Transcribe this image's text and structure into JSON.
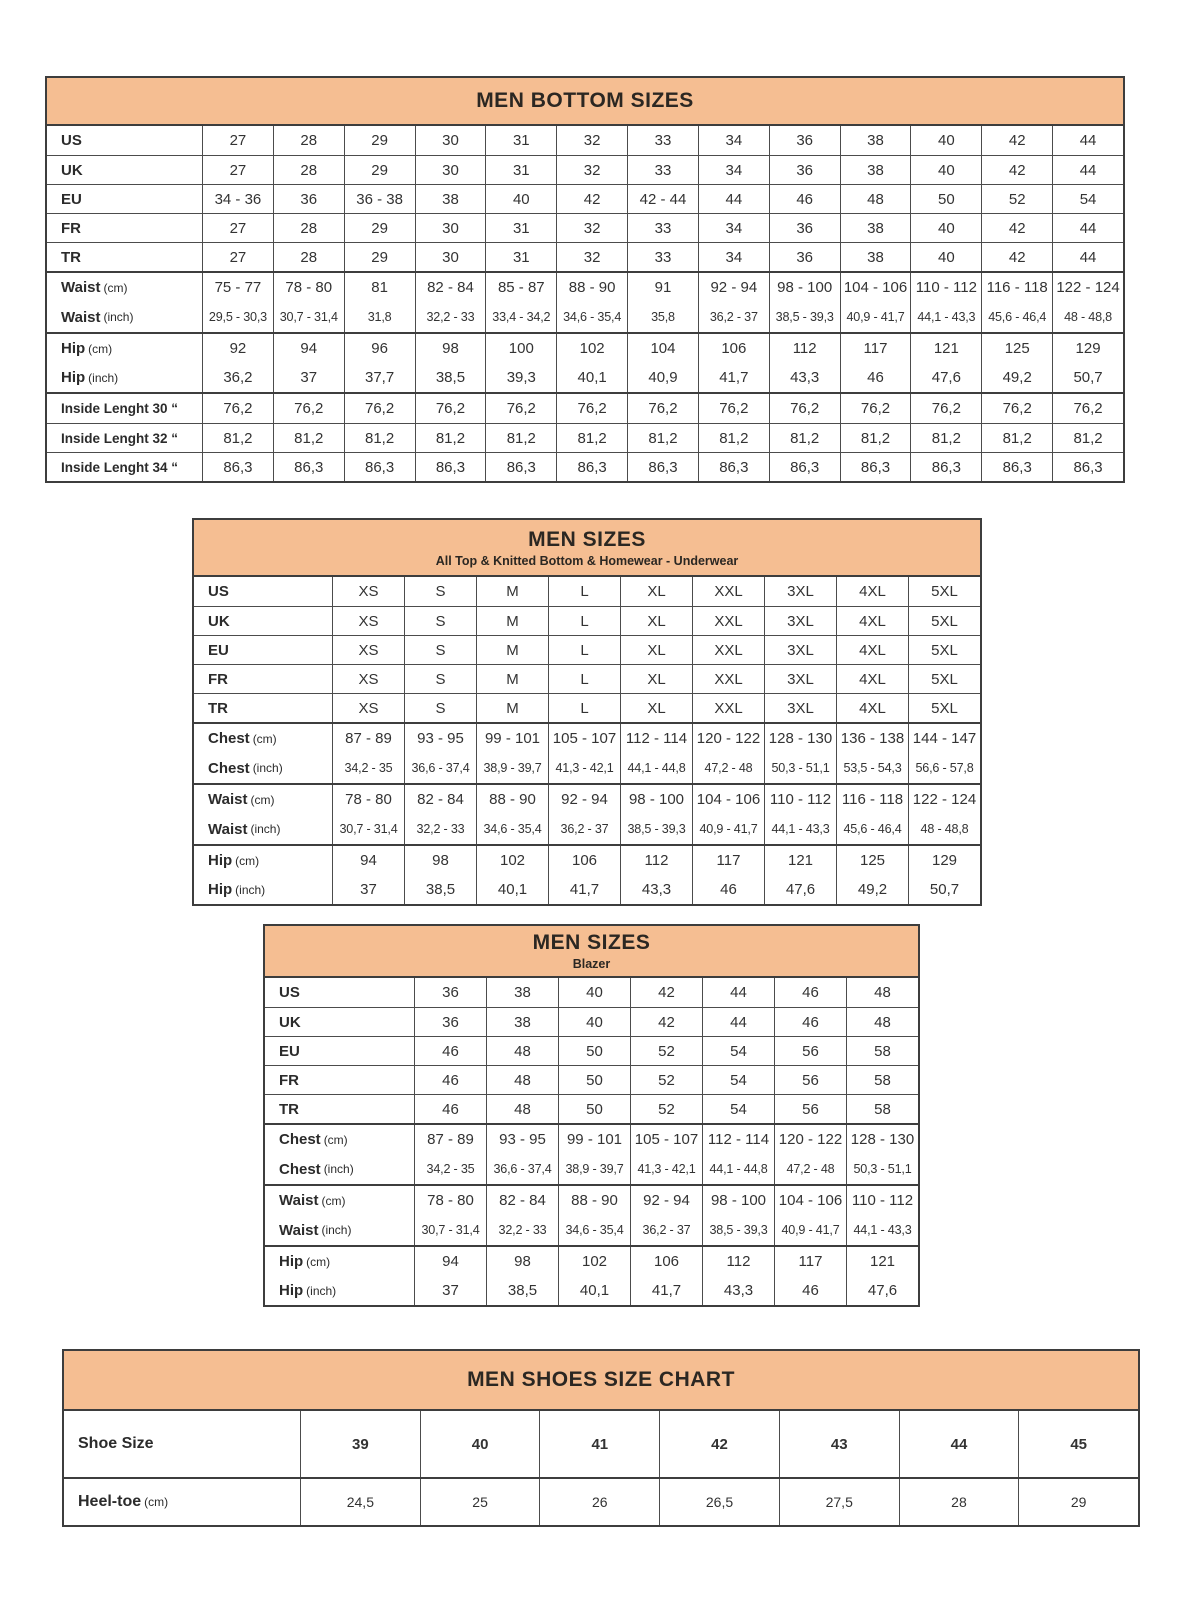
{
  "colors": {
    "header_background": "#F5BE92",
    "header_text": "#2b2722",
    "border": "#3d3d3d",
    "cell_text": "#333333"
  },
  "tables": [
    {
      "id": "men-bottom-sizes",
      "title": "MEN BOTTOM SIZES",
      "subtitle": "",
      "rows": [
        {
          "label": "US",
          "label_note": "",
          "sep": "none",
          "small": false,
          "values": [
            "27",
            "28",
            "29",
            "30",
            "31",
            "32",
            "33",
            "34",
            "36",
            "38",
            "40",
            "42",
            "44"
          ]
        },
        {
          "label": "UK",
          "label_note": "",
          "sep": "thin",
          "small": false,
          "values": [
            "27",
            "28",
            "29",
            "30",
            "31",
            "32",
            "33",
            "34",
            "36",
            "38",
            "40",
            "42",
            "44"
          ]
        },
        {
          "label": "EU",
          "label_note": "",
          "sep": "thin",
          "small": false,
          "values": [
            "34 - 36",
            "36",
            "36 - 38",
            "38",
            "40",
            "42",
            "42 - 44",
            "44",
            "46",
            "48",
            "50",
            "52",
            "54"
          ]
        },
        {
          "label": "FR",
          "label_note": "",
          "sep": "thin",
          "small": false,
          "values": [
            "27",
            "28",
            "29",
            "30",
            "31",
            "32",
            "33",
            "34",
            "36",
            "38",
            "40",
            "42",
            "44"
          ]
        },
        {
          "label": "TR",
          "label_note": "",
          "sep": "thin",
          "small": false,
          "values": [
            "27",
            "28",
            "29",
            "30",
            "31",
            "32",
            "33",
            "34",
            "36",
            "38",
            "40",
            "42",
            "44"
          ]
        },
        {
          "label": "Waist",
          "label_note": "(cm)",
          "sep": "thick",
          "small": false,
          "values": [
            "75 - 77",
            "78 - 80",
            "81",
            "82 - 84",
            "85 - 87",
            "88 - 90",
            "91",
            "92 - 94",
            "98 - 100",
            "104 - 106",
            "110 - 112",
            "116 - 118",
            "122 - 124"
          ]
        },
        {
          "label": "Waist",
          "label_note": "(inch)",
          "sep": "none",
          "small": true,
          "values": [
            "29,5 - 30,3",
            "30,7 - 31,4",
            "31,8",
            "32,2 - 33",
            "33,4 - 34,2",
            "34,6 - 35,4",
            "35,8",
            "36,2 - 37",
            "38,5 - 39,3",
            "40,9 - 41,7",
            "44,1 - 43,3",
            "45,6 - 46,4",
            "48 - 48,8"
          ]
        },
        {
          "label": "Hip",
          "label_note": "(cm)",
          "sep": "thick",
          "small": false,
          "values": [
            "92",
            "94",
            "96",
            "98",
            "100",
            "102",
            "104",
            "106",
            "112",
            "117",
            "121",
            "125",
            "129"
          ]
        },
        {
          "label": "Hip",
          "label_note": "(inch)",
          "sep": "none",
          "small": false,
          "values": [
            "36,2",
            "37",
            "37,7",
            "38,5",
            "39,3",
            "40,1",
            "40,9",
            "41,7",
            "43,3",
            "46",
            "47,6",
            "49,2",
            "50,7"
          ]
        },
        {
          "label": "Inside Lenght 30 “",
          "label_note": "",
          "sep": "thick",
          "small": false,
          "label_small": true,
          "values": [
            "76,2",
            "76,2",
            "76,2",
            "76,2",
            "76,2",
            "76,2",
            "76,2",
            "76,2",
            "76,2",
            "76,2",
            "76,2",
            "76,2",
            "76,2"
          ]
        },
        {
          "label": "Inside Lenght 32 “",
          "label_note": "",
          "sep": "thin",
          "small": false,
          "label_small": true,
          "values": [
            "81,2",
            "81,2",
            "81,2",
            "81,2",
            "81,2",
            "81,2",
            "81,2",
            "81,2",
            "81,2",
            "81,2",
            "81,2",
            "81,2",
            "81,2"
          ]
        },
        {
          "label": "Inside Lenght 34 “",
          "label_note": "",
          "sep": "thin",
          "small": false,
          "label_small": true,
          "values": [
            "86,3",
            "86,3",
            "86,3",
            "86,3",
            "86,3",
            "86,3",
            "86,3",
            "86,3",
            "86,3",
            "86,3",
            "86,3",
            "86,3",
            "86,3"
          ]
        }
      ]
    },
    {
      "id": "men-sizes-tops",
      "title": "MEN SIZES",
      "subtitle": "All Top & Knitted Bottom & Homewear - Underwear",
      "rows": [
        {
          "label": "US",
          "label_note": "",
          "sep": "none",
          "small": false,
          "values": [
            "XS",
            "S",
            "M",
            "L",
            "XL",
            "XXL",
            "3XL",
            "4XL",
            "5XL"
          ]
        },
        {
          "label": "UK",
          "label_note": "",
          "sep": "thin",
          "small": false,
          "values": [
            "XS",
            "S",
            "M",
            "L",
            "XL",
            "XXL",
            "3XL",
            "4XL",
            "5XL"
          ]
        },
        {
          "label": "EU",
          "label_note": "",
          "sep": "thin",
          "small": false,
          "values": [
            "XS",
            "S",
            "M",
            "L",
            "XL",
            "XXL",
            "3XL",
            "4XL",
            "5XL"
          ]
        },
        {
          "label": "FR",
          "label_note": "",
          "sep": "thin",
          "small": false,
          "values": [
            "XS",
            "S",
            "M",
            "L",
            "XL",
            "XXL",
            "3XL",
            "4XL",
            "5XL"
          ]
        },
        {
          "label": "TR",
          "label_note": "",
          "sep": "thin",
          "small": false,
          "values": [
            "XS",
            "S",
            "M",
            "L",
            "XL",
            "XXL",
            "3XL",
            "4XL",
            "5XL"
          ]
        },
        {
          "label": "Chest",
          "label_note": "(cm)",
          "sep": "thick",
          "small": false,
          "values": [
            "87 - 89",
            "93 - 95",
            "99 - 101",
            "105 - 107",
            "112 - 114",
            "120 - 122",
            "128 - 130",
            "136 - 138",
            "144 - 147"
          ]
        },
        {
          "label": "Chest",
          "label_note": "(inch)",
          "sep": "none",
          "small": true,
          "values": [
            "34,2 - 35",
            "36,6 - 37,4",
            "38,9 - 39,7",
            "41,3 - 42,1",
            "44,1 - 44,8",
            "47,2 - 48",
            "50,3 - 51,1",
            "53,5 - 54,3",
            "56,6 - 57,8"
          ]
        },
        {
          "label": "Waist",
          "label_note": "(cm)",
          "sep": "thick",
          "small": false,
          "values": [
            "78 - 80",
            "82 - 84",
            "88 - 90",
            "92 - 94",
            "98 - 100",
            "104 - 106",
            "110 - 112",
            "116 - 118",
            "122 - 124"
          ]
        },
        {
          "label": "Waist",
          "label_note": "(inch)",
          "sep": "none",
          "small": true,
          "values": [
            "30,7 - 31,4",
            "32,2 - 33",
            "34,6 - 35,4",
            "36,2 - 37",
            "38,5 - 39,3",
            "40,9 - 41,7",
            "44,1 - 43,3",
            "45,6 - 46,4",
            "48 - 48,8"
          ]
        },
        {
          "label": "Hip",
          "label_note": "(cm)",
          "sep": "thick",
          "small": false,
          "values": [
            "94",
            "98",
            "102",
            "106",
            "112",
            "117",
            "121",
            "125",
            "129"
          ]
        },
        {
          "label": "Hip",
          "label_note": "(inch)",
          "sep": "none",
          "small": false,
          "values": [
            "37",
            "38,5",
            "40,1",
            "41,7",
            "43,3",
            "46",
            "47,6",
            "49,2",
            "50,7"
          ]
        }
      ]
    },
    {
      "id": "men-sizes-blazer",
      "title": "MEN SIZES",
      "subtitle": "Blazer",
      "rows": [
        {
          "label": "US",
          "label_note": "",
          "sep": "none",
          "small": false,
          "values": [
            "36",
            "38",
            "40",
            "42",
            "44",
            "46",
            "48"
          ]
        },
        {
          "label": "UK",
          "label_note": "",
          "sep": "thin",
          "small": false,
          "values": [
            "36",
            "38",
            "40",
            "42",
            "44",
            "46",
            "48"
          ]
        },
        {
          "label": "EU",
          "label_note": "",
          "sep": "thin",
          "small": false,
          "values": [
            "46",
            "48",
            "50",
            "52",
            "54",
            "56",
            "58"
          ]
        },
        {
          "label": "FR",
          "label_note": "",
          "sep": "thin",
          "small": false,
          "values": [
            "46",
            "48",
            "50",
            "52",
            "54",
            "56",
            "58"
          ]
        },
        {
          "label": "TR",
          "label_note": "",
          "sep": "thin",
          "small": false,
          "values": [
            "46",
            "48",
            "50",
            "52",
            "54",
            "56",
            "58"
          ]
        },
        {
          "label": "Chest",
          "label_note": "(cm)",
          "sep": "thick",
          "small": false,
          "values": [
            "87 - 89",
            "93 - 95",
            "99 - 101",
            "105 - 107",
            "112 - 114",
            "120 - 122",
            "128 - 130"
          ]
        },
        {
          "label": "Chest",
          "label_note": "(inch)",
          "sep": "none",
          "small": true,
          "values": [
            "34,2 - 35",
            "36,6 - 37,4",
            "38,9 - 39,7",
            "41,3 - 42,1",
            "44,1 - 44,8",
            "47,2 - 48",
            "50,3 - 51,1"
          ]
        },
        {
          "label": "Waist",
          "label_note": "(cm)",
          "sep": "thick",
          "small": false,
          "values": [
            "78 - 80",
            "82 - 84",
            "88 - 90",
            "92 - 94",
            "98 - 100",
            "104 - 106",
            "110 - 112"
          ]
        },
        {
          "label": "Waist",
          "label_note": "(inch)",
          "sep": "none",
          "small": true,
          "values": [
            "30,7 - 31,4",
            "32,2 - 33",
            "34,6 - 35,4",
            "36,2 - 37",
            "38,5 - 39,3",
            "40,9 - 41,7",
            "44,1 - 43,3"
          ]
        },
        {
          "label": "Hip",
          "label_note": "(cm)",
          "sep": "thick",
          "small": false,
          "values": [
            "94",
            "98",
            "102",
            "106",
            "112",
            "117",
            "121"
          ]
        },
        {
          "label": "Hip",
          "label_note": "(inch)",
          "sep": "none",
          "small": false,
          "values": [
            "37",
            "38,5",
            "40,1",
            "41,7",
            "43,3",
            "46",
            "47,6"
          ]
        }
      ]
    },
    {
      "id": "men-shoes-size-chart",
      "title": "MEN SHOES SIZE CHART",
      "subtitle": "",
      "rows": [
        {
          "label": "Shoe Size",
          "label_note": "",
          "sep": "none",
          "small": false,
          "bold_values": true,
          "values": [
            "39",
            "40",
            "41",
            "42",
            "43",
            "44",
            "45"
          ]
        },
        {
          "label": "Heel-toe",
          "label_note": "(cm)",
          "sep": "thick",
          "small": false,
          "values": [
            "24,5",
            "25",
            "26",
            "26,5",
            "27,5",
            "28",
            "29"
          ]
        }
      ]
    }
  ]
}
